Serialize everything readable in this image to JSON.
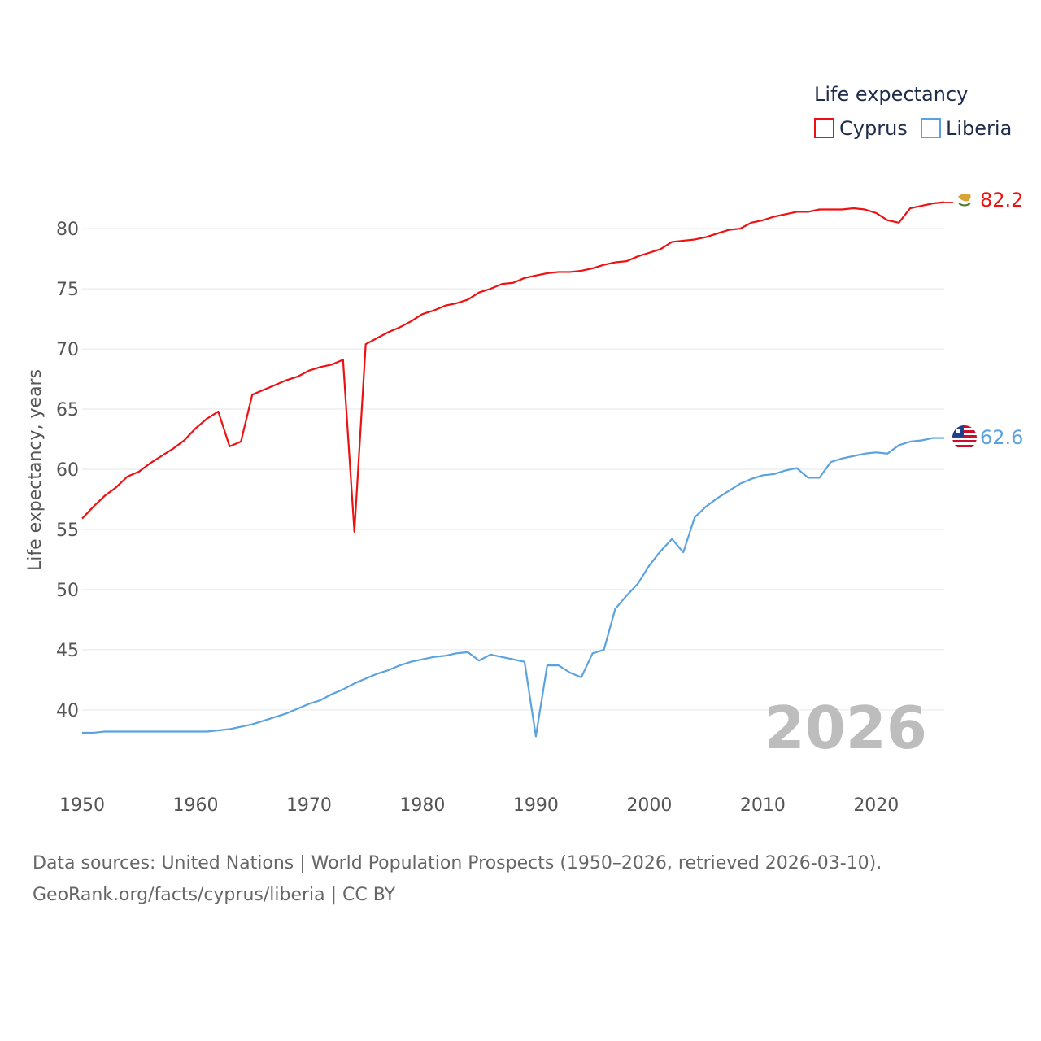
{
  "chart_data": {
    "type": "line",
    "legend_title": "Life expectancy",
    "legend_position": "top-right",
    "ylabel": "Life expectancy, years",
    "xlabel": "",
    "xlim": [
      1950,
      2026
    ],
    "ylim": [
      33.5,
      84
    ],
    "grid": true,
    "x_ticks": [
      1950,
      1960,
      1970,
      1980,
      1990,
      2000,
      2010,
      2020
    ],
    "y_ticks": [
      40,
      45,
      50,
      55,
      60,
      65,
      70,
      75,
      80
    ],
    "year_label": "2026",
    "x": [
      1950,
      1951,
      1952,
      1953,
      1954,
      1955,
      1956,
      1957,
      1958,
      1959,
      1960,
      1961,
      1962,
      1963,
      1964,
      1965,
      1966,
      1967,
      1968,
      1969,
      1970,
      1971,
      1972,
      1973,
      1974,
      1975,
      1976,
      1977,
      1978,
      1979,
      1980,
      1981,
      1982,
      1983,
      1984,
      1985,
      1986,
      1987,
      1988,
      1989,
      1990,
      1991,
      1992,
      1993,
      1994,
      1995,
      1996,
      1997,
      1998,
      1999,
      2000,
      2001,
      2002,
      2003,
      2004,
      2005,
      2006,
      2007,
      2008,
      2009,
      2010,
      2011,
      2012,
      2013,
      2014,
      2015,
      2016,
      2017,
      2018,
      2019,
      2020,
      2021,
      2022,
      2023,
      2024,
      2025,
      2026
    ],
    "series": [
      {
        "name": "Cyprus",
        "color": "#ee1111",
        "end_label": "82.2",
        "flag": "cyprus-flag",
        "values": [
          55.9,
          56.9,
          57.8,
          58.5,
          59.4,
          59.8,
          60.5,
          61.1,
          61.7,
          62.4,
          63.4,
          64.2,
          64.8,
          61.9,
          62.3,
          66.2,
          66.6,
          67.0,
          67.4,
          67.7,
          68.2,
          68.5,
          68.7,
          69.1,
          54.8,
          70.4,
          70.9,
          71.4,
          71.8,
          72.3,
          72.9,
          73.2,
          73.6,
          73.8,
          74.1,
          74.7,
          75.0,
          75.4,
          75.5,
          75.9,
          76.1,
          76.3,
          76.4,
          76.4,
          76.5,
          76.7,
          77.0,
          77.2,
          77.3,
          77.7,
          78.0,
          78.3,
          78.9,
          79.0,
          79.1,
          79.3,
          79.6,
          79.9,
          80.0,
          80.5,
          80.7,
          81.0,
          81.2,
          81.4,
          81.4,
          81.6,
          81.6,
          81.6,
          81.7,
          81.6,
          81.3,
          80.7,
          80.5,
          81.7,
          81.9,
          82.1,
          82.2
        ]
      },
      {
        "name": "Liberia",
        "color": "#5ba2e0",
        "end_label": "62.6",
        "flag": "liberia-flag",
        "values": [
          38.1,
          38.1,
          38.2,
          38.2,
          38.2,
          38.2,
          38.2,
          38.2,
          38.2,
          38.2,
          38.2,
          38.2,
          38.3,
          38.4,
          38.6,
          38.8,
          39.1,
          39.4,
          39.7,
          40.1,
          40.5,
          40.8,
          41.3,
          41.7,
          42.2,
          42.6,
          43.0,
          43.3,
          43.7,
          44.0,
          44.2,
          44.4,
          44.5,
          44.7,
          44.8,
          44.1,
          44.6,
          44.4,
          44.2,
          44.0,
          37.8,
          43.7,
          43.7,
          43.1,
          42.7,
          44.7,
          45.0,
          48.4,
          49.5,
          50.5,
          52.0,
          53.2,
          54.2,
          53.1,
          56.0,
          56.9,
          57.6,
          58.2,
          58.8,
          59.2,
          59.5,
          59.6,
          59.9,
          60.1,
          59.3,
          59.3,
          60.6,
          60.9,
          61.1,
          61.3,
          61.4,
          61.3,
          62.0,
          62.3,
          62.4,
          62.6,
          62.6
        ]
      }
    ]
  },
  "source": {
    "line1": "Data sources: United Nations | World Population Prospects (1950–2026, retrieved 2026-03-10).",
    "line2": "GeoRank.org/facts/cyprus/liberia | CC BY"
  }
}
